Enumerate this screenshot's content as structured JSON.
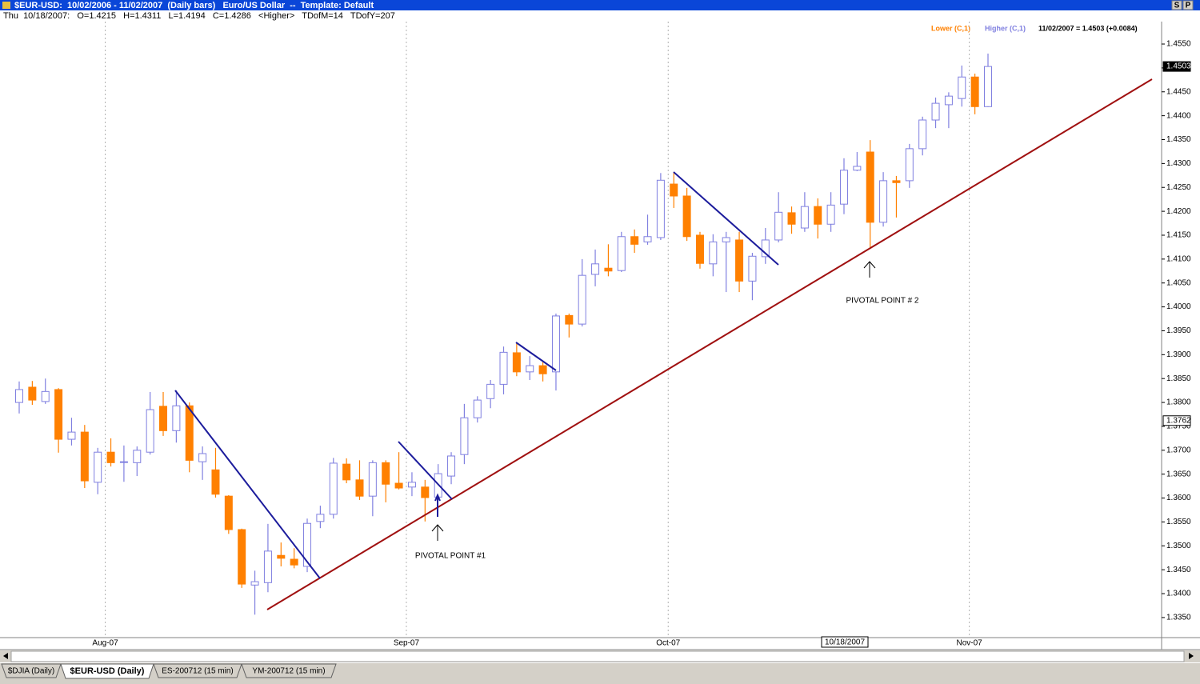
{
  "window": {
    "title": "$EUR-USD:  10/02/2006 - 11/02/2007  (Daily bars)   Euro/US Dollar  --  Template: Default",
    "buttons": [
      "S",
      "P"
    ],
    "info": "Thu  10/18/2007:   O=1.4215   H=1.4311   L=1.4194   C=1.4286   <Higher>   TDofM=14   TDofY=207",
    "tabs": [
      "$DJIA (Daily)",
      "$EUR-USD (Daily)",
      "ES-200712 (15 min)",
      "YM-200712 (15 min)"
    ]
  },
  "chart_data": {
    "type": "candlestick",
    "legend": [
      {
        "name": "Lower (C,1)",
        "color": "#ff8000"
      },
      {
        "name": "Higher (C,1)",
        "color": "#8080e0"
      }
    ],
    "last_value_text": "11/02/2007 = 1.4503 (+0.0084)",
    "annotations": [
      "PIVOTAL POINT #1",
      "PIVOTAL POINT # 2"
    ],
    "cursor_date": "10/18/2007",
    "categories": [
      null,
      null,
      null,
      null,
      null,
      null,
      null,
      "Aug-07",
      null,
      null,
      null,
      null,
      null,
      null,
      null,
      null,
      null,
      null,
      null,
      null,
      null,
      null,
      null,
      null,
      null,
      null,
      null,
      null,
      null,
      null,
      "Sep-07",
      null,
      null,
      null,
      null,
      null,
      null,
      null,
      null,
      null,
      null,
      null,
      null,
      null,
      null,
      null,
      null,
      null,
      null,
      null,
      "Oct-07",
      null,
      null,
      null,
      null,
      null,
      null,
      null,
      null,
      null,
      null,
      null,
      null,
      null,
      null,
      null,
      null,
      null,
      null,
      null,
      null,
      null,
      null,
      "Nov-07",
      null
    ],
    "open": [
      1.38,
      1.3832,
      1.3802,
      1.3827,
      1.3723,
      1.3738,
      1.3633,
      1.3696,
      1.3676,
      1.3674,
      1.3696,
      1.3792,
      1.3741,
      1.3793,
      1.3676,
      1.3659,
      1.3604,
      1.3534,
      1.3418,
      1.3423,
      1.348,
      1.3472,
      1.3457,
      1.3551,
      1.3566,
      1.3671,
      1.3638,
      1.3604,
      1.3674,
      1.3631,
      1.3623,
      1.3623,
      1.3602,
      1.3646,
      1.3691,
      1.3768,
      1.3808,
      1.3838,
      1.3904,
      1.3864,
      1.3877,
      1.3864,
      1.3982,
      1.3964,
      1.4068,
      1.4081,
      1.4076,
      1.4147,
      1.4136,
      1.4145,
      1.4257,
      1.4232,
      1.415,
      1.409,
      1.4136,
      1.414,
      1.4054,
      1.4105,
      1.414,
      1.4197,
      1.4165,
      1.421,
      1.4173,
      1.4215,
      1.4286,
      1.4324,
      1.4177,
      1.4264,
      1.4264,
      1.4331,
      1.4391,
      1.4423,
      1.4436,
      1.4481,
      1.4419
    ],
    "high": [
      1.3844,
      1.3845,
      1.385,
      1.383,
      1.3768,
      1.3753,
      1.3705,
      1.3725,
      1.371,
      1.3708,
      1.3822,
      1.3822,
      1.3825,
      1.38,
      1.3708,
      1.3705,
      1.3606,
      1.3536,
      1.3448,
      1.3546,
      1.3507,
      1.3495,
      1.3557,
      1.3584,
      1.3684,
      1.3683,
      1.3679,
      1.3679,
      1.3679,
      1.3696,
      1.3654,
      1.3638,
      1.3671,
      1.3696,
      1.3797,
      1.3813,
      1.3847,
      1.3917,
      1.3926,
      1.3897,
      1.3885,
      1.3986,
      1.3986,
      1.41,
      1.412,
      1.4131,
      1.4157,
      1.4162,
      1.4193,
      1.428,
      1.4282,
      1.4249,
      1.4157,
      1.4152,
      1.4157,
      1.4157,
      1.4113,
      1.4165,
      1.424,
      1.421,
      1.424,
      1.4227,
      1.424,
      1.4311,
      1.4324,
      1.4349,
      1.4282,
      1.4274,
      1.4341,
      1.4398,
      1.4438,
      1.4449,
      1.4505,
      1.4488,
      1.453
    ],
    "low": [
      1.3777,
      1.3795,
      1.3797,
      1.3695,
      1.371,
      1.3621,
      1.3608,
      1.3666,
      1.3634,
      1.3646,
      1.3691,
      1.373,
      1.3716,
      1.3654,
      1.3638,
      1.3601,
      1.3525,
      1.3412,
      1.3356,
      1.3403,
      1.3457,
      1.3453,
      1.3445,
      1.3537,
      1.3557,
      1.3631,
      1.3596,
      1.3562,
      1.3591,
      1.3618,
      1.3604,
      1.3551,
      1.3596,
      1.3629,
      1.3671,
      1.3758,
      1.3788,
      1.3817,
      1.3855,
      1.3847,
      1.3844,
      1.3825,
      1.3936,
      1.3959,
      1.4043,
      1.4064,
      1.4073,
      1.4113,
      1.413,
      1.414,
      1.4207,
      1.4138,
      1.408,
      1.4064,
      1.4031,
      1.4031,
      1.4014,
      1.409,
      1.4135,
      1.4153,
      1.4157,
      1.4143,
      1.4157,
      1.4194,
      1.4284,
      1.4123,
      1.4168,
      1.4187,
      1.4249,
      1.4317,
      1.4374,
      1.4374,
      1.4419,
      1.4403,
      1.4418
    ],
    "close": [
      1.3827,
      1.3805,
      1.3823,
      1.3723,
      1.3738,
      1.3636,
      1.3696,
      1.3674,
      1.3676,
      1.37,
      1.3785,
      1.3741,
      1.3793,
      1.3679,
      1.3693,
      1.3608,
      1.3534,
      1.342,
      1.3425,
      1.3489,
      1.3474,
      1.346,
      1.3547,
      1.3566,
      1.3673,
      1.3638,
      1.3604,
      1.3674,
      1.3629,
      1.3621,
      1.3633,
      1.3601,
      1.3651,
      1.3688,
      1.3768,
      1.3805,
      1.3838,
      1.3905,
      1.3864,
      1.3877,
      1.386,
      1.3981,
      1.3964,
      1.4066,
      1.409,
      1.4075,
      1.4147,
      1.4131,
      1.4147,
      1.4265,
      1.4232,
      1.4147,
      1.4091,
      1.4136,
      1.4145,
      1.4054,
      1.4106,
      1.414,
      1.4198,
      1.4173,
      1.421,
      1.4173,
      1.4213,
      1.4286,
      1.4294,
      1.4177,
      1.4264,
      1.426,
      1.4331,
      1.4391,
      1.4426,
      1.4441,
      1.4481,
      1.4419,
      1.4503
    ],
    "ylim": [
      1.3308,
      1.4617
    ],
    "yticks": [
      {
        "value": 1.335,
        "label": "1.3350"
      },
      {
        "value": 1.34,
        "label": "1.3400"
      },
      {
        "value": 1.345,
        "label": "1.3450"
      },
      {
        "value": 1.35,
        "label": "1.3500"
      },
      {
        "value": 1.355,
        "label": "1.3550"
      },
      {
        "value": 1.36,
        "label": "1.3600"
      },
      {
        "value": 1.365,
        "label": "1.3650"
      },
      {
        "value": 1.37,
        "label": "1.3700"
      },
      {
        "value": 1.375,
        "label": "1.3750"
      },
      {
        "value": 1.38,
        "label": "1.3800"
      },
      {
        "value": 1.385,
        "label": "1.3850"
      },
      {
        "value": 1.39,
        "label": "1.3900"
      },
      {
        "value": 1.395,
        "label": "1.3950"
      },
      {
        "value": 1.4,
        "label": "1.4000"
      },
      {
        "value": 1.405,
        "label": "1.4050"
      },
      {
        "value": 1.41,
        "label": "1.4100"
      },
      {
        "value": 1.415,
        "label": "1.4150"
      },
      {
        "value": 1.42,
        "label": "1.4200"
      },
      {
        "value": 1.425,
        "label": "1.4250"
      },
      {
        "value": 1.43,
        "label": "1.4300"
      },
      {
        "value": 1.435,
        "label": "1.4350"
      },
      {
        "value": 1.44,
        "label": "1.4400"
      },
      {
        "value": 1.445,
        "label": "1.4450"
      },
      {
        "value": 1.45,
        "label": "1.4500"
      },
      {
        "value": 1.455,
        "label": "1.4550"
      }
    ],
    "price_markers": [
      {
        "value": 1.4503,
        "label": "1.4503",
        "fill": "#000000",
        "text_color": "#ffffff"
      },
      {
        "value": 1.3762,
        "label": "1.3762",
        "fill": "#ffffff",
        "text_color": "#000000"
      }
    ]
  }
}
